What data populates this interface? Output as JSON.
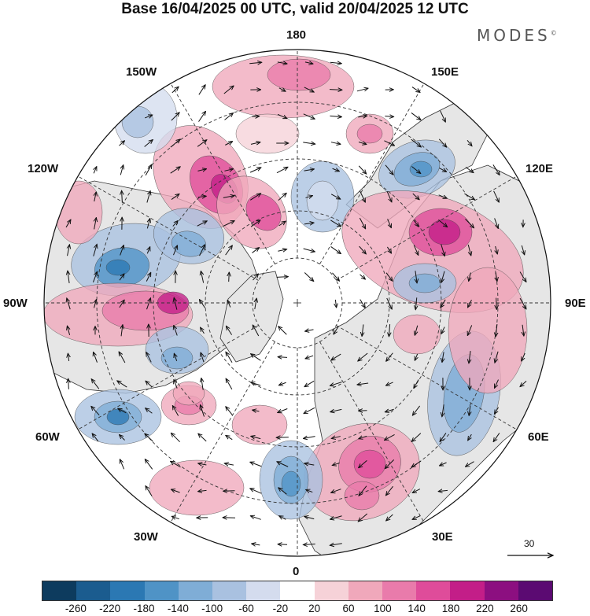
{
  "title": "Base 16/04/2025 00 UTC, valid 20/04/2025 12 UTC",
  "brand": "MODES",
  "brand_mark": "©",
  "longitude_labels": [
    "180",
    "150E",
    "120E",
    "90E",
    "60E",
    "30E",
    "0",
    "30W",
    "60W",
    "90W",
    "120W",
    "150W"
  ],
  "reference_vector_label": "30",
  "colorbar": {
    "ticks": [
      "-260",
      "-220",
      "-180",
      "-140",
      "-100",
      "-60",
      "-20",
      "20",
      "60",
      "100",
      "140",
      "180",
      "220",
      "260"
    ],
    "colors": [
      "#0d3b5e",
      "#1b5c8f",
      "#2b78b3",
      "#4f93c6",
      "#7fadd6",
      "#a9c1e0",
      "#d4dcee",
      "#ffffff",
      "#f6d2d8",
      "#f0a8bb",
      "#e97bab",
      "#df4c9a",
      "#c31e88",
      "#8c0f80",
      "#5b0a72"
    ]
  },
  "colors": {
    "land": "#e6e6e6",
    "coast": "#333333",
    "grid": "#333333"
  }
}
